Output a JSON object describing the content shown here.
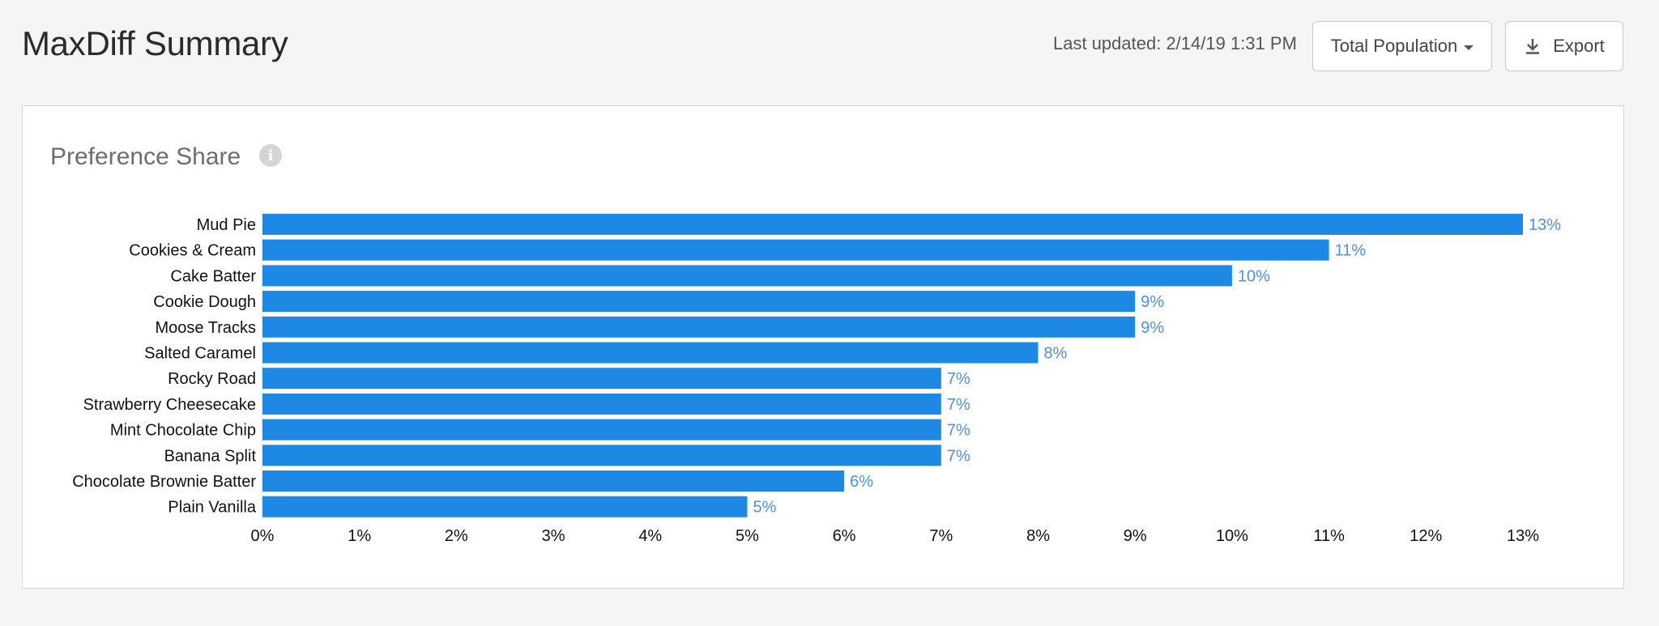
{
  "header": {
    "title": "MaxDiff Summary",
    "last_updated": "Last updated: 2/14/19 1:31 PM",
    "population_button": "Total Population",
    "export_button": "Export"
  },
  "card": {
    "title": "Preference Share",
    "info_icon_glyph": "i"
  },
  "colors": {
    "bar": "#1e88e5",
    "value_label": "#4f8fe3",
    "background": "#f5f5f5"
  },
  "chart_data": {
    "type": "bar",
    "orientation": "horizontal",
    "title": "Preference Share",
    "categories": [
      "Mud Pie",
      "Cookies & Cream",
      "Cake Batter",
      "Cookie Dough",
      "Moose Tracks",
      "Salted Caramel",
      "Rocky Road",
      "Strawberry Cheesecake",
      "Mint Chocolate Chip",
      "Banana Split",
      "Chocolate Brownie Batter",
      "Plain Vanilla"
    ],
    "values": [
      13,
      11,
      10,
      9,
      9,
      8,
      7,
      7,
      7,
      7,
      6,
      5
    ],
    "value_labels": [
      "13%",
      "11%",
      "10%",
      "9%",
      "9%",
      "8%",
      "7%",
      "7%",
      "7%",
      "7%",
      "6%",
      "5%"
    ],
    "xlim": [
      0,
      13
    ],
    "xticks": [
      0,
      1,
      2,
      3,
      4,
      5,
      6,
      7,
      8,
      9,
      10,
      11,
      12,
      13
    ],
    "xtick_labels": [
      "0%",
      "1%",
      "2%",
      "3%",
      "4%",
      "5%",
      "6%",
      "7%",
      "8%",
      "9%",
      "10%",
      "11%",
      "12%",
      "13%"
    ],
    "grid": false,
    "legend": "none"
  }
}
